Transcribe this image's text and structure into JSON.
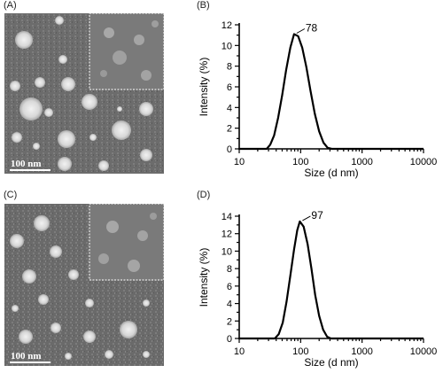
{
  "panels": {
    "A": {
      "tag": "(A)",
      "scale_label": "100 nm"
    },
    "B": {
      "tag": "(B)"
    },
    "C": {
      "tag": "(C)",
      "scale_label": "100 nm"
    },
    "D": {
      "tag": "(D)"
    }
  },
  "chart_data": [
    {
      "id": "B",
      "type": "line",
      "xlabel": "Size (d nm)",
      "ylabel": "Intensity (%)",
      "xscale": "log",
      "xlim": [
        10,
        10000
      ],
      "ylim": [
        0,
        12
      ],
      "x_ticks": [
        10,
        100,
        1000,
        10000
      ],
      "x_tick_labels": [
        "10",
        "100",
        "1000",
        "10000"
      ],
      "y_ticks": [
        0,
        2,
        4,
        6,
        8,
        10,
        12
      ],
      "y_tick_labels": [
        "0",
        "2",
        "4",
        "6",
        "8",
        "10",
        "12"
      ],
      "peak_label": "78",
      "peak": {
        "x": 78,
        "y": 11.1
      },
      "series": [
        {
          "x": [
            10,
            28,
            32,
            37,
            43,
            50,
            58,
            68,
            78,
            91,
            106,
            124,
            145,
            170,
            200,
            235,
            275,
            320,
            380,
            10000
          ],
          "y": [
            0,
            0,
            0.4,
            1.3,
            3.0,
            5.2,
            7.6,
            9.8,
            11.1,
            10.9,
            9.8,
            7.9,
            5.6,
            3.4,
            1.7,
            0.6,
            0.1,
            0,
            0,
            0
          ]
        }
      ]
    },
    {
      "id": "D",
      "type": "line",
      "xlabel": "Size (d nm)",
      "ylabel": "Intensity (%)",
      "xscale": "log",
      "xlim": [
        10,
        10000
      ],
      "ylim": [
        0,
        14
      ],
      "x_ticks": [
        10,
        100,
        1000,
        10000
      ],
      "x_tick_labels": [
        "10",
        "100",
        "1000",
        "10000"
      ],
      "y_ticks": [
        0,
        2,
        4,
        6,
        8,
        10,
        12,
        14
      ],
      "y_tick_labels": [
        "0",
        "2",
        "4",
        "6",
        "8",
        "10",
        "12",
        "14"
      ],
      "peak_label": "97",
      "peak": {
        "x": 97,
        "y": 13.4
      },
      "series": [
        {
          "x": [
            10,
            38,
            44,
            51,
            59,
            68,
            78,
            88,
            97,
            112,
            130,
            150,
            172,
            200,
            232,
            270,
            310,
            360,
            10000
          ],
          "y": [
            0,
            0,
            0.5,
            1.8,
            4.2,
            7.2,
            10.2,
            12.4,
            13.4,
            12.8,
            10.8,
            8.0,
            5.0,
            2.6,
            1.0,
            0.2,
            0,
            0,
            0
          ]
        }
      ]
    }
  ]
}
